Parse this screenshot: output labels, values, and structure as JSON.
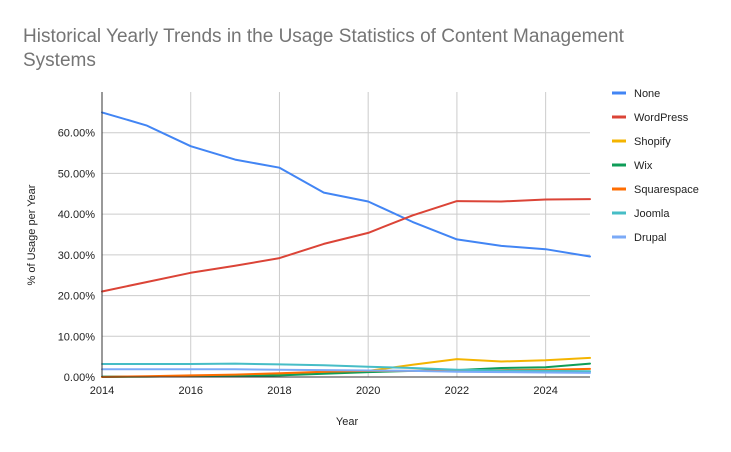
{
  "chart_data": {
    "type": "line",
    "title_lines": [
      "Historical Yearly Trends in the Usage Statistics of Content Management",
      "Systems"
    ],
    "xlabel": "Year",
    "ylabel": "% of Usage per Year",
    "xlim": [
      2014,
      2025
    ],
    "ylim": [
      0,
      0.7
    ],
    "x_ticks": [
      2014,
      2016,
      2018,
      2020,
      2022,
      2024
    ],
    "x_tick_labels": [
      "2014",
      "2016",
      "2018",
      "2020",
      "2022",
      "2024"
    ],
    "y_ticks": [
      0,
      0.1,
      0.2,
      0.3,
      0.4,
      0.5,
      0.6
    ],
    "y_tick_labels": [
      "0.00%",
      "10.00%",
      "20.00%",
      "30.00%",
      "40.00%",
      "50.00%",
      "60.00%"
    ],
    "grid": true,
    "legend_position": "right",
    "x": [
      2014,
      2015,
      2016,
      2017,
      2018,
      2019,
      2020,
      2021,
      2022,
      2023,
      2024,
      2025
    ],
    "series": [
      {
        "name": "None",
        "color": "#4285f4",
        "values": [
          0.65,
          0.618,
          0.567,
          0.534,
          0.514,
          0.453,
          0.431,
          0.381,
          0.338,
          0.322,
          0.314,
          0.296
        ]
      },
      {
        "name": "WordPress",
        "color": "#db4437",
        "values": [
          0.21,
          0.233,
          0.256,
          0.273,
          0.292,
          0.327,
          0.354,
          0.397,
          0.432,
          0.431,
          0.436,
          0.437
        ]
      },
      {
        "name": "Shopify",
        "color": "#f4b400",
        "values": [
          0.0,
          0.001,
          0.002,
          0.004,
          0.006,
          0.01,
          0.015,
          0.03,
          0.044,
          0.038,
          0.041,
          0.047
        ]
      },
      {
        "name": "Wix",
        "color": "#0f9d58",
        "values": [
          0.001,
          0.001,
          0.002,
          0.002,
          0.004,
          0.008,
          0.012,
          0.015,
          0.017,
          0.022,
          0.024,
          0.033
        ]
      },
      {
        "name": "Squarespace",
        "color": "#ff6d01",
        "values": [
          0.0,
          0.002,
          0.004,
          0.006,
          0.009,
          0.013,
          0.015,
          0.015,
          0.015,
          0.017,
          0.018,
          0.02
        ]
      },
      {
        "name": "Joomla",
        "color": "#46bdc6",
        "values": [
          0.032,
          0.032,
          0.032,
          0.033,
          0.031,
          0.029,
          0.025,
          0.022,
          0.018,
          0.016,
          0.015,
          0.014
        ]
      },
      {
        "name": "Drupal",
        "color": "#7baaf7",
        "values": [
          0.019,
          0.019,
          0.019,
          0.019,
          0.018,
          0.017,
          0.016,
          0.015,
          0.013,
          0.012,
          0.011,
          0.01
        ]
      }
    ]
  }
}
